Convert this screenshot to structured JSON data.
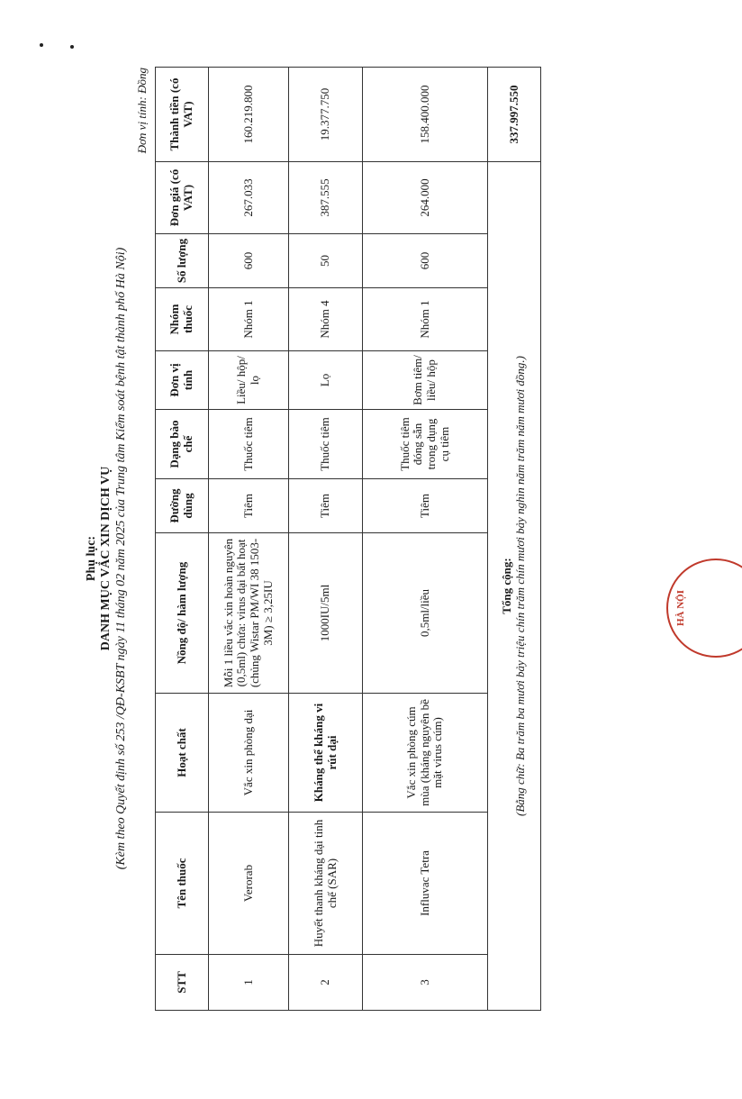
{
  "header": {
    "appendix": "Phụ lục:",
    "title": "DANH MỤC VẮC XIN DỊCH VỤ",
    "subtitle": "(Kèm theo Quyết định số 253 /QĐ-KSBT ngày 11 tháng 02 năm 2025 của Trung tâm Kiểm soát bệnh tật thành phố Hà Nội)",
    "unit": "Đơn vị tính: Đồng"
  },
  "table": {
    "columns": [
      "STT",
      "Tên thuốc",
      "Hoạt chất",
      "Nồng độ/ hàm lượng",
      "Đường dùng",
      "Dạng bào chế",
      "Đơn vị tính",
      "Nhóm thuốc",
      "Số lượng",
      "Đơn giá (có VAT)",
      "Thành tiền (có VAT)"
    ],
    "rows": [
      [
        "1",
        "Verorab",
        "Vắc xin phòng dại",
        "Mỗi 1 liều vắc xin hoàn nguyên (0,5ml) chứa: virus dại bất hoạt (chủng Wistar PM/WI 38 1503-3M) ≥ 3,25IU",
        "Tiêm",
        "Thuốc tiêm",
        "Liều/ hộp/ lọ",
        "Nhóm 1",
        "600",
        "267.033",
        "160.219.800"
      ],
      [
        "2",
        "Huyết thanh kháng dại tinh chế (SAR)",
        "Kháng thể kháng vi rút dại",
        "1000IU/5ml",
        "Tiêm",
        "Thuốc tiêm",
        "Lọ",
        "Nhóm 4",
        "50",
        "387.555",
        "19.377.750"
      ],
      [
        "3",
        "Influvac Tetra",
        "Vắc xin phòng cúm mùa (kháng nguyên bề mặt virus cúm)",
        "0,5ml/liều",
        "Tiêm",
        "Thuốc tiêm đóng sẵn trong dụng cụ tiêm",
        "Bơm tiêm/ liều/ hộp",
        "Nhóm 1",
        "600",
        "264.000",
        "158.400.000"
      ]
    ],
    "total_label": "Tổng cộng:",
    "total_words": "(Bằng chữ: Ba trăm ba mươi bảy triệu chín trăm chín mươi bảy nghìn năm trăm năm mươi đồng.)",
    "total_value": "337.997.550"
  },
  "stamp": {
    "text": "HÀ NỘI",
    "color": "#c0392b"
  }
}
